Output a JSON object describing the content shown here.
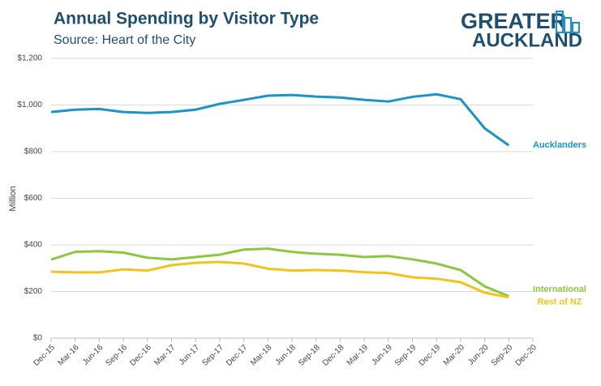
{
  "chart_data": {
    "type": "line",
    "title": "Annual Spending by Visitor Type",
    "subtitle": "Source: Heart of the City",
    "logo": [
      "GREATER",
      "AUCKLAND"
    ],
    "y_label": "Million",
    "categories": [
      "Dec-15",
      "Mar-16",
      "Jun-16",
      "Sep-16",
      "Dec-16",
      "Mar-17",
      "Jun-17",
      "Sep-17",
      "Dec-17",
      "Mar-18",
      "Jun-18",
      "Sep-18",
      "Dec-18",
      "Mar-19",
      "Jun-19",
      "Sep-19",
      "Dec-19",
      "Mar-20",
      "Jun-20",
      "Sep-20",
      "Dec-20"
    ],
    "series": [
      {
        "name": "Aucklanders",
        "color": "#1a93c9",
        "values": [
          970,
          980,
          983,
          970,
          966,
          970,
          980,
          1005,
          1022,
          1040,
          1043,
          1036,
          1032,
          1022,
          1015,
          1035,
          1046,
          1025,
          900,
          827,
          null
        ]
      },
      {
        "name": "International",
        "color": "#8dc63f",
        "values": [
          337,
          370,
          373,
          367,
          345,
          338,
          348,
          358,
          380,
          384,
          370,
          362,
          358,
          348,
          352,
          338,
          320,
          292,
          222,
          180,
          null
        ]
      },
      {
        "name": "Rest of NZ",
        "color": "#f5c21b",
        "values": [
          285,
          282,
          282,
          295,
          290,
          313,
          323,
          327,
          320,
          298,
          290,
          292,
          290,
          283,
          279,
          261,
          255,
          240,
          195,
          175,
          null
        ]
      }
    ],
    "ylim": [
      0,
      1200
    ],
    "yticks": [
      {
        "value": 0,
        "label": "$0"
      },
      {
        "value": 200,
        "label": "$200"
      },
      {
        "value": 400,
        "label": "$400"
      },
      {
        "value": 600,
        "label": "$600"
      },
      {
        "value": 800,
        "label": "$800"
      },
      {
        "value": 1000,
        "label": "$1,000"
      },
      {
        "value": 1200,
        "label": "$1,200"
      }
    ],
    "grid": true
  }
}
